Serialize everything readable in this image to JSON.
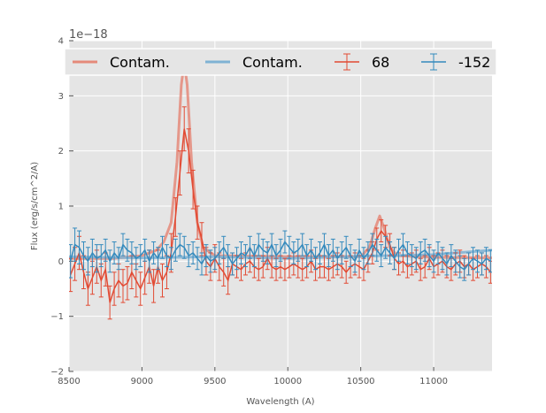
{
  "chart_data": {
    "type": "line",
    "title": "",
    "xlabel": "Wavelength (A)",
    "ylabel": "Flux (erg/s/cm^2/A)",
    "offset_label": "1e−18",
    "xlim": [
      8500,
      11400
    ],
    "ylim": [
      -2,
      4
    ],
    "xticks": [
      "8500",
      "9000",
      "9500",
      "10000",
      "10500",
      "11000"
    ],
    "xtick_values": [
      8500,
      9000,
      9500,
      10000,
      10500,
      11000
    ],
    "yticks": [
      "−2",
      "−1",
      "0",
      "1",
      "2",
      "3",
      "4"
    ],
    "ytick_values": [
      -2,
      -1,
      0,
      1,
      2,
      3,
      4
    ],
    "grid": true,
    "legend_position": "top",
    "colors": {
      "red": "#e24a33",
      "blue": "#348abd",
      "contam_red": "#e58a7a",
      "contam_blue": "#7fb2d4",
      "background": "#e5e5e5"
    },
    "legend": [
      {
        "label": "Contam.",
        "kind": "line",
        "color": "#e58a7a"
      },
      {
        "label": "Contam.",
        "kind": "line",
        "color": "#7fb2d4"
      },
      {
        "label": "68",
        "kind": "errorbar",
        "color": "#e24a33"
      },
      {
        "label": "-152",
        "kind": "errorbar",
        "color": "#348abd"
      }
    ],
    "series": [
      {
        "name": "Contam.",
        "kind": "line",
        "color": "#e58a7a",
        "x": [
          8500,
          8800,
          9000,
          9100,
          9150,
          9200,
          9240,
          9270,
          9290,
          9310,
          9340,
          9380,
          9420,
          9500,
          10000,
          10500,
          10560,
          10600,
          10630,
          10660,
          10700,
          10750,
          11000,
          11400
        ],
        "y": [
          0.05,
          0.05,
          0.1,
          0.2,
          0.35,
          0.7,
          1.8,
          3.2,
          3.6,
          3.2,
          1.8,
          0.7,
          0.25,
          0.1,
          0.08,
          0.08,
          0.25,
          0.6,
          0.82,
          0.6,
          0.25,
          0.1,
          0.07,
          0.06
        ]
      },
      {
        "name": "Contam.",
        "kind": "line",
        "color": "#7fb2d4",
        "x": [
          8500,
          9000,
          9500,
          10000,
          10500,
          11000,
          11400
        ],
        "y": [
          0.08,
          0.06,
          0.08,
          0.05,
          0.09,
          0.12,
          0.2
        ]
      },
      {
        "name": "68",
        "kind": "errorbar",
        "color": "#e24a33",
        "x": [
          8510,
          8540,
          8570,
          8600,
          8630,
          8660,
          8690,
          8720,
          8750,
          8780,
          8810,
          8840,
          8870,
          8900,
          8930,
          8960,
          8990,
          9020,
          9050,
          9080,
          9110,
          9140,
          9170,
          9200,
          9230,
          9260,
          9290,
          9320,
          9350,
          9380,
          9410,
          9440,
          9470,
          9500,
          9530,
          9560,
          9590,
          9620,
          9650,
          9680,
          9710,
          9740,
          9770,
          9800,
          9830,
          9860,
          9890,
          9920,
          9950,
          9980,
          10010,
          10040,
          10070,
          10100,
          10130,
          10160,
          10190,
          10220,
          10250,
          10280,
          10310,
          10340,
          10370,
          10400,
          10430,
          10460,
          10490,
          10520,
          10550,
          10580,
          10610,
          10640,
          10670,
          10700,
          10730,
          10760,
          10790,
          10820,
          10850,
          10880,
          10910,
          10940,
          10970,
          11000,
          11030,
          11060,
          11090,
          11120,
          11150,
          11180,
          11210,
          11240,
          11270,
          11300,
          11330,
          11360,
          11390
        ],
        "y": [
          -0.25,
          -0.05,
          0.15,
          -0.2,
          -0.5,
          -0.3,
          -0.1,
          -0.35,
          -0.15,
          -0.75,
          -0.5,
          -0.35,
          -0.45,
          -0.4,
          -0.2,
          -0.35,
          -0.5,
          -0.3,
          -0.1,
          -0.45,
          -0.1,
          -0.35,
          -0.2,
          0.15,
          0.8,
          1.6,
          2.4,
          2.0,
          1.3,
          0.7,
          0.4,
          0.0,
          -0.1,
          0.05,
          -0.1,
          -0.2,
          -0.35,
          -0.05,
          -0.1,
          -0.15,
          -0.05,
          0.0,
          -0.1,
          -0.15,
          -0.1,
          0.05,
          -0.1,
          -0.15,
          -0.1,
          -0.15,
          -0.1,
          -0.05,
          -0.1,
          -0.15,
          -0.1,
          0.0,
          -0.15,
          -0.1,
          -0.1,
          -0.15,
          -0.1,
          -0.05,
          -0.1,
          -0.2,
          -0.1,
          -0.05,
          -0.1,
          -0.15,
          0.0,
          0.15,
          0.4,
          0.55,
          0.45,
          0.3,
          0.05,
          -0.05,
          0.0,
          -0.1,
          -0.05,
          0.0,
          -0.15,
          -0.1,
          0.05,
          -0.1,
          -0.05,
          0.0,
          -0.1,
          -0.15,
          -0.05,
          0.0,
          -0.1,
          -0.05,
          -0.15,
          -0.1,
          -0.05,
          -0.1,
          -0.2
        ],
        "err": [
          0.3,
          0.3,
          0.3,
          0.3,
          0.3,
          0.3,
          0.3,
          0.3,
          0.3,
          0.3,
          0.3,
          0.3,
          0.3,
          0.3,
          0.3,
          0.3,
          0.3,
          0.3,
          0.3,
          0.3,
          0.3,
          0.3,
          0.3,
          0.35,
          0.35,
          0.4,
          0.4,
          0.4,
          0.35,
          0.3,
          0.3,
          0.25,
          0.25,
          0.25,
          0.25,
          0.25,
          0.25,
          0.2,
          0.2,
          0.2,
          0.2,
          0.2,
          0.2,
          0.2,
          0.2,
          0.2,
          0.2,
          0.2,
          0.2,
          0.2,
          0.2,
          0.2,
          0.2,
          0.2,
          0.2,
          0.2,
          0.2,
          0.2,
          0.2,
          0.2,
          0.2,
          0.2,
          0.2,
          0.2,
          0.2,
          0.2,
          0.2,
          0.2,
          0.2,
          0.2,
          0.2,
          0.2,
          0.2,
          0.2,
          0.2,
          0.2,
          0.2,
          0.2,
          0.2,
          0.2,
          0.2,
          0.2,
          0.2,
          0.2,
          0.2,
          0.2,
          0.2,
          0.2,
          0.2,
          0.2,
          0.2,
          0.2,
          0.2,
          0.2,
          0.2,
          0.2,
          0.2
        ]
      },
      {
        "name": "-152",
        "kind": "errorbar",
        "color": "#348abd",
        "x": [
          8510,
          8540,
          8570,
          8600,
          8630,
          8660,
          8690,
          8720,
          8750,
          8780,
          8810,
          8840,
          8870,
          8900,
          8930,
          8960,
          8990,
          9020,
          9050,
          9080,
          9110,
          9140,
          9170,
          9200,
          9230,
          9260,
          9290,
          9320,
          9350,
          9380,
          9410,
          9440,
          9470,
          9500,
          9530,
          9560,
          9590,
          9620,
          9650,
          9680,
          9710,
          9740,
          9770,
          9800,
          9830,
          9860,
          9890,
          9920,
          9950,
          9980,
          10010,
          10040,
          10070,
          10100,
          10130,
          10160,
          10190,
          10220,
          10250,
          10280,
          10310,
          10340,
          10370,
          10400,
          10430,
          10460,
          10490,
          10520,
          10550,
          10580,
          10610,
          10640,
          10670,
          10700,
          10730,
          10760,
          10790,
          10820,
          10850,
          10880,
          10910,
          10940,
          10970,
          11000,
          11030,
          11060,
          11090,
          11120,
          11150,
          11180,
          11210,
          11240,
          11270,
          11300,
          11330,
          11360,
          11390
        ],
        "y": [
          0.0,
          0.3,
          0.25,
          0.1,
          0.0,
          0.15,
          0.05,
          0.1,
          0.2,
          0.0,
          0.15,
          0.05,
          0.3,
          0.2,
          0.15,
          0.05,
          0.1,
          0.2,
          0.0,
          0.15,
          0.05,
          0.25,
          0.1,
          0.05,
          0.2,
          0.3,
          0.25,
          0.1,
          0.15,
          0.05,
          -0.05,
          0.1,
          0.0,
          0.05,
          0.15,
          0.25,
          0.1,
          -0.05,
          0.05,
          0.15,
          0.1,
          0.25,
          0.1,
          0.3,
          0.2,
          0.15,
          0.3,
          0.1,
          0.2,
          0.35,
          0.25,
          0.15,
          0.2,
          0.3,
          0.1,
          0.2,
          0.05,
          0.15,
          0.3,
          0.1,
          0.2,
          0.05,
          0.15,
          0.25,
          0.1,
          0.0,
          0.2,
          0.05,
          0.15,
          0.3,
          0.2,
          0.1,
          0.25,
          0.15,
          0.05,
          0.2,
          0.3,
          0.15,
          0.1,
          0.05,
          0.15,
          0.2,
          0.1,
          0.0,
          0.15,
          0.05,
          -0.05,
          0.1,
          0.0,
          -0.1,
          -0.15,
          -0.05,
          0.05,
          0.0,
          -0.05,
          0.05,
          0.0
        ],
        "err": [
          0.3,
          0.3,
          0.3,
          0.25,
          0.25,
          0.25,
          0.25,
          0.2,
          0.2,
          0.2,
          0.2,
          0.2,
          0.2,
          0.2,
          0.2,
          0.2,
          0.2,
          0.2,
          0.2,
          0.2,
          0.2,
          0.2,
          0.2,
          0.2,
          0.2,
          0.2,
          0.2,
          0.2,
          0.2,
          0.2,
          0.2,
          0.2,
          0.2,
          0.2,
          0.2,
          0.2,
          0.2,
          0.2,
          0.2,
          0.2,
          0.2,
          0.2,
          0.2,
          0.2,
          0.2,
          0.2,
          0.2,
          0.2,
          0.2,
          0.2,
          0.2,
          0.2,
          0.2,
          0.2,
          0.2,
          0.2,
          0.2,
          0.2,
          0.2,
          0.2,
          0.2,
          0.2,
          0.2,
          0.2,
          0.2,
          0.2,
          0.2,
          0.2,
          0.2,
          0.2,
          0.2,
          0.2,
          0.2,
          0.2,
          0.2,
          0.2,
          0.2,
          0.2,
          0.2,
          0.2,
          0.2,
          0.2,
          0.2,
          0.2,
          0.2,
          0.2,
          0.2,
          0.2,
          0.2,
          0.2,
          0.2,
          0.2,
          0.2,
          0.2,
          0.2,
          0.2,
          0.2
        ]
      }
    ]
  }
}
